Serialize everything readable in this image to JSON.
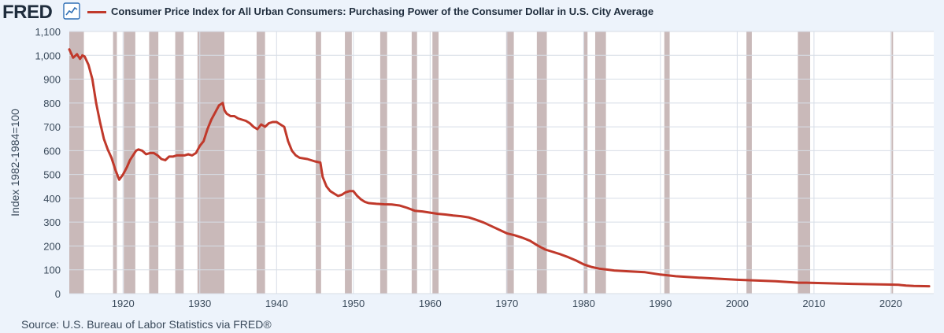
{
  "header": {
    "logo_text": "FRED",
    "logo_icon": "line-graph-icon",
    "series_title": "Consumer Price Index for All Urban Consumers: Purchasing Power of the Consumer Dollar in U.S. City Average"
  },
  "source": "Source: U.S. Bureau of Labor Statistics via FRED®",
  "colors": {
    "background": "#edf3fb",
    "plot_background": "#ffffff",
    "recession_shade": "#c9b9b9",
    "line": "#c0392b",
    "grid": "#d7dde6",
    "text": "#3a4a5b"
  },
  "chart_data": {
    "type": "line",
    "title": "Consumer Price Index for All Urban Consumers: Purchasing Power of the Consumer Dollar in U.S. City Average",
    "ylabel": "Index 1982-1984=100",
    "xlabel": "",
    "xlim": [
      1913,
      2025.6
    ],
    "ylim": [
      0,
      1100
    ],
    "y_ticks": [
      0,
      100,
      200,
      300,
      400,
      500,
      600,
      700,
      800,
      900,
      1000,
      1100
    ],
    "y_tick_labels": [
      "0",
      "100",
      "200",
      "300",
      "400",
      "500",
      "600",
      "700",
      "800",
      "900",
      "1,000",
      "1,100"
    ],
    "x_ticks": [
      1920,
      1930,
      1940,
      1950,
      1960,
      1970,
      1980,
      1990,
      2000,
      2010,
      2020
    ],
    "x_tick_labels": [
      "1920",
      "1930",
      "1940",
      "1950",
      "1960",
      "1970",
      "1980",
      "1990",
      "2000",
      "2010",
      "2020"
    ],
    "grid": true,
    "recessions": [
      [
        1913.0,
        1914.9
      ],
      [
        1918.7,
        1919.2
      ],
      [
        1920.1,
        1921.6
      ],
      [
        1923.4,
        1924.6
      ],
      [
        1926.8,
        1927.9
      ],
      [
        1929.7,
        1933.2
      ],
      [
        1937.4,
        1938.5
      ],
      [
        1945.1,
        1945.8
      ],
      [
        1948.9,
        1949.8
      ],
      [
        1953.5,
        1954.4
      ],
      [
        1957.6,
        1958.3
      ],
      [
        1960.3,
        1961.1
      ],
      [
        1969.9,
        1970.9
      ],
      [
        1973.9,
        1975.2
      ],
      [
        1980.0,
        1980.5
      ],
      [
        1981.5,
        1982.9
      ],
      [
        1990.5,
        1991.2
      ],
      [
        2001.2,
        2001.9
      ],
      [
        2007.9,
        2009.5
      ],
      [
        2020.1,
        2020.3
      ]
    ],
    "series": [
      {
        "name": "Consumer Price Index for All Urban Consumers: Purchasing Power of the Consumer Dollar in U.S. City Average",
        "x": [
          1913.0,
          1913.5,
          1914.0,
          1914.4,
          1914.7,
          1915.0,
          1915.5,
          1916.0,
          1916.5,
          1917.0,
          1917.5,
          1918.0,
          1918.5,
          1919.0,
          1919.5,
          1920.0,
          1920.5,
          1920.9,
          1921.3,
          1921.7,
          1922.0,
          1922.5,
          1923.0,
          1923.5,
          1924.0,
          1924.5,
          1925.0,
          1925.5,
          1926.0,
          1926.5,
          1927.0,
          1927.5,
          1928.0,
          1928.5,
          1929.0,
          1929.5,
          1930.0,
          1930.5,
          1931.0,
          1931.5,
          1932.0,
          1932.5,
          1933.0,
          1933.2,
          1933.5,
          1934.0,
          1934.5,
          1935.0,
          1935.5,
          1936.0,
          1936.5,
          1937.0,
          1937.5,
          1938.0,
          1938.5,
          1939.0,
          1939.5,
          1940.0,
          1940.5,
          1941.0,
          1941.5,
          1942.0,
          1942.5,
          1943.0,
          1944.0,
          1945.0,
          1945.7,
          1946.0,
          1946.5,
          1947.0,
          1947.5,
          1948.0,
          1948.5,
          1949.0,
          1949.5,
          1950.0,
          1950.5,
          1951.0,
          1951.5,
          1952.0,
          1953.0,
          1954.0,
          1955.0,
          1956.0,
          1957.0,
          1958.0,
          1959.0,
          1960.0,
          1961.0,
          1962.0,
          1963.0,
          1964.0,
          1965.0,
          1966.0,
          1967.0,
          1968.0,
          1969.0,
          1970.0,
          1971.0,
          1972.0,
          1973.0,
          1974.0,
          1975.0,
          1976.0,
          1977.0,
          1978.0,
          1979.0,
          1980.0,
          1981.0,
          1982.0,
          1983.0,
          1984.0,
          1986.0,
          1988.0,
          1990.0,
          1992.0,
          1995.0,
          2000.0,
          2005.0,
          2008.0,
          2009.0,
          2010.0,
          2015.0,
          2020.0,
          2021.0,
          2022.0,
          2023.0,
          2025.0
        ],
        "values": [
          1025,
          990,
          1005,
          985,
          1000,
          995,
          960,
          900,
          800,
          720,
          650,
          605,
          570,
          520,
          478,
          500,
          530,
          560,
          580,
          600,
          605,
          600,
          585,
          590,
          590,
          580,
          565,
          560,
          575,
          575,
          580,
          580,
          580,
          585,
          580,
          590,
          620,
          640,
          690,
          730,
          760,
          790,
          800,
          770,
          755,
          745,
          745,
          735,
          730,
          725,
          715,
          700,
          690,
          710,
          700,
          715,
          720,
          720,
          710,
          700,
          640,
          600,
          580,
          570,
          565,
          555,
          550,
          490,
          450,
          430,
          420,
          410,
          415,
          425,
          430,
          430,
          410,
          395,
          385,
          380,
          377,
          375,
          374,
          370,
          360,
          348,
          345,
          340,
          335,
          332,
          328,
          325,
          320,
          310,
          298,
          283,
          268,
          253,
          245,
          235,
          222,
          202,
          185,
          175,
          165,
          153,
          139,
          123,
          112,
          105,
          101,
          97,
          93,
          90,
          80,
          73,
          67,
          58,
          52,
          46,
          46,
          45,
          41,
          38,
          37,
          34,
          32,
          31
        ]
      }
    ]
  }
}
